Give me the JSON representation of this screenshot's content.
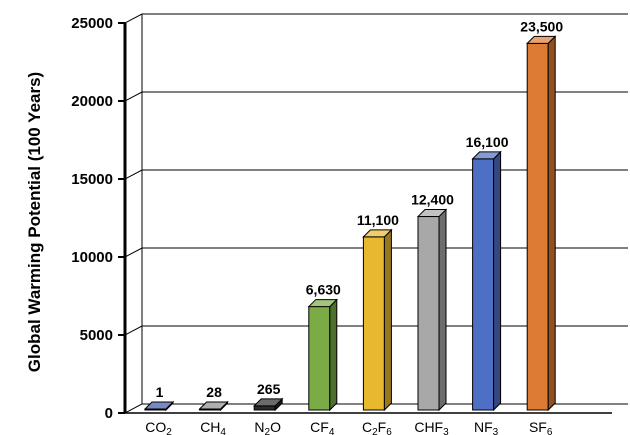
{
  "chart_data": {
    "type": "bar",
    "ylabel": "Global Warming Potential (100 Years)",
    "ylim": [
      0,
      25000
    ],
    "yticks": [
      0,
      5000,
      10000,
      15000,
      20000,
      25000
    ],
    "grid": true,
    "categories": [
      {
        "base": "CO",
        "sub": "2"
      },
      {
        "base": "CH",
        "sub": "4"
      },
      {
        "base": "N",
        "sub": "2",
        "tail": "O"
      },
      {
        "base": "CF",
        "sub": "4"
      },
      {
        "base": "C",
        "sub": "2",
        "tail": "F",
        "sub2": "6"
      },
      {
        "base": "CHF",
        "sub": "3"
      },
      {
        "base": "NF",
        "sub": "3"
      },
      {
        "base": "SF",
        "sub": "6"
      }
    ],
    "values": [
      1,
      28,
      265,
      6630,
      11100,
      12400,
      16100,
      23500
    ],
    "data_labels": [
      "1",
      "28",
      "265",
      "6,630",
      "11,100",
      "12,400",
      "16,100",
      "23,500"
    ],
    "colors": [
      "#3f55a5",
      "#8c8c8c",
      "#2b2b2b",
      "#7aab45",
      "#e8b92e",
      "#a8a8a8",
      "#4e6fc6",
      "#dd7b35"
    ]
  }
}
